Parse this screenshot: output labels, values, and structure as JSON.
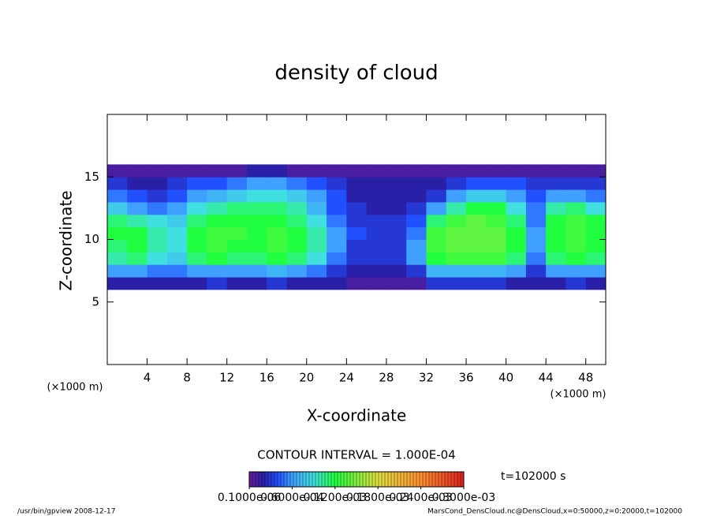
{
  "chart_data": {
    "type": "heatmap",
    "title": "density of cloud",
    "x_label": "X-coordinate",
    "y_label": "Z-coordinate",
    "x_unit": "(×1000 m)",
    "y_unit": "(×1000 m)",
    "xlim": [
      0,
      50
    ],
    "ylim": [
      0,
      20
    ],
    "xticks": [
      4,
      8,
      12,
      16,
      20,
      24,
      28,
      32,
      36,
      40,
      44,
      48
    ],
    "yticks": [
      5,
      10,
      15
    ],
    "x": [
      1,
      3,
      5,
      7,
      9,
      11,
      13,
      15,
      17,
      19,
      21,
      23,
      25,
      27,
      29,
      31,
      33,
      35,
      37,
      39,
      41,
      43,
      45,
      47,
      49
    ],
    "y": [
      6.5,
      7.5,
      8.5,
      9.5,
      10.5,
      11.5,
      12.5,
      13.5,
      14.5,
      15.5
    ],
    "values": [
      [
        2e-05,
        2e-05,
        2e-05,
        2e-05,
        2e-05,
        3e-05,
        2e-05,
        2e-05,
        3e-05,
        2e-05,
        2e-05,
        2e-05,
        1e-05,
        1e-05,
        1e-05,
        1e-05,
        3e-05,
        3e-05,
        3e-05,
        3e-05,
        2e-05,
        2e-05,
        2e-05,
        3e-05,
        2e-05
      ],
      [
        6e-05,
        6e-05,
        5e-05,
        5e-05,
        6e-05,
        6e-05,
        6e-05,
        6e-05,
        7e-05,
        6e-05,
        5e-05,
        3e-05,
        2e-05,
        2e-05,
        2e-05,
        3e-05,
        7e-05,
        7e-05,
        7e-05,
        7e-05,
        6e-05,
        3e-05,
        6e-05,
        6e-05,
        6e-05
      ],
      [
        0.0001,
        0.00011,
        9e-05,
        8e-05,
        0.00011,
        0.00012,
        0.00011,
        0.00011,
        0.00012,
        0.00011,
        9e-05,
        5e-05,
        3e-05,
        3e-05,
        3e-05,
        6e-05,
        0.00012,
        0.00013,
        0.00013,
        0.00013,
        0.00011,
        5e-05,
        0.00011,
        0.00012,
        0.00011
      ],
      [
        0.00011,
        0.00012,
        0.0001,
        9e-05,
        0.00012,
        0.00013,
        0.00012,
        0.00012,
        0.00013,
        0.00012,
        0.0001,
        6e-05,
        3e-05,
        3e-05,
        3e-05,
        6e-05,
        0.00013,
        0.00014,
        0.00014,
        0.00014,
        0.00012,
        6e-05,
        0.00012,
        0.00013,
        0.00012
      ],
      [
        0.00012,
        0.00012,
        0.0001,
        9e-05,
        0.00012,
        0.00013,
        0.00013,
        0.00012,
        0.00013,
        0.00012,
        0.0001,
        6e-05,
        4e-05,
        3e-05,
        3e-05,
        5e-05,
        0.00013,
        0.00014,
        0.00014,
        0.00014,
        0.00012,
        6e-05,
        0.00012,
        0.00013,
        0.00012
      ],
      [
        0.00011,
        0.0001,
        9e-05,
        8e-05,
        0.00011,
        0.00012,
        0.00012,
        0.00012,
        0.00012,
        0.00011,
        9e-05,
        5e-05,
        3e-05,
        3e-05,
        3e-05,
        4e-05,
        0.00011,
        0.00013,
        0.00014,
        0.00013,
        0.00011,
        5e-05,
        0.00012,
        0.00013,
        0.00012
      ],
      [
        8e-05,
        6e-05,
        5e-05,
        6e-05,
        9e-05,
        0.0001,
        0.00011,
        0.00011,
        0.00011,
        0.0001,
        7e-05,
        4e-05,
        3e-05,
        2e-05,
        2e-05,
        3e-05,
        6e-05,
        0.0001,
        0.00012,
        0.00012,
        9e-05,
        5e-05,
        0.0001,
        0.00011,
        9e-05
      ],
      [
        5e-05,
        4e-05,
        3e-05,
        4e-05,
        6e-05,
        7e-05,
        8e-05,
        9e-05,
        9e-05,
        8e-05,
        6e-05,
        4e-05,
        2e-05,
        2e-05,
        2e-05,
        2e-05,
        3e-05,
        6e-05,
        8e-05,
        8e-05,
        6e-05,
        4e-05,
        6e-05,
        6e-05,
        5e-05
      ],
      [
        3e-05,
        2e-05,
        2e-05,
        3e-05,
        4e-05,
        4e-05,
        5e-05,
        6e-05,
        6e-05,
        5e-05,
        4e-05,
        3e-05,
        2e-05,
        2e-05,
        2e-05,
        2e-05,
        2e-05,
        3e-05,
        4e-05,
        4e-05,
        4e-05,
        3e-05,
        3e-05,
        3e-05,
        3e-05
      ],
      [
        1e-05,
        1e-05,
        1e-05,
        1e-05,
        1e-05,
        1e-05,
        1e-05,
        2e-05,
        2e-05,
        1e-05,
        1e-05,
        1e-05,
        1e-05,
        1e-05,
        1e-05,
        1e-05,
        1e-05,
        1e-05,
        1e-05,
        1e-05,
        1e-05,
        1e-05,
        1e-05,
        1e-05,
        1e-05
      ]
    ],
    "color_stops": [
      [
        0,
        "#6a1b9a"
      ],
      [
        2e-05,
        "#2a20a8"
      ],
      [
        4e-05,
        "#2050ff"
      ],
      [
        6e-05,
        "#40a0ff"
      ],
      [
        9e-05,
        "#40e0e0"
      ],
      [
        0.00012,
        "#20ff40"
      ],
      [
        0.00018,
        "#e0e040"
      ],
      [
        0.00024,
        "#ff9030"
      ],
      [
        0.0003,
        "#e02020"
      ]
    ],
    "colorbar_lim": [
      0,
      0.0003
    ],
    "colorbar_ticks": [
      {
        "value": 1e-07,
        "label": "0.1000e-06"
      },
      {
        "value": 6e-05,
        "label": "0.6000e-04"
      },
      {
        "value": 0.00012,
        "label": "0.1200e-03"
      },
      {
        "value": 0.00018,
        "label": "0.1800e-03"
      },
      {
        "value": 0.00024,
        "label": "0.2400e-03"
      },
      {
        "value": 0.0003,
        "label": "0.3000e-03"
      }
    ],
    "contour_interval": "CONTOUR INTERVAL = 1.000E-04",
    "time": "t=102000 s",
    "footer_left": "/usr/bin/gpview  2008-12-17",
    "footer_right": "MarsCond_DensCloud.nc@DensCloud,x=0:50000,z=0:20000,t=102000"
  }
}
